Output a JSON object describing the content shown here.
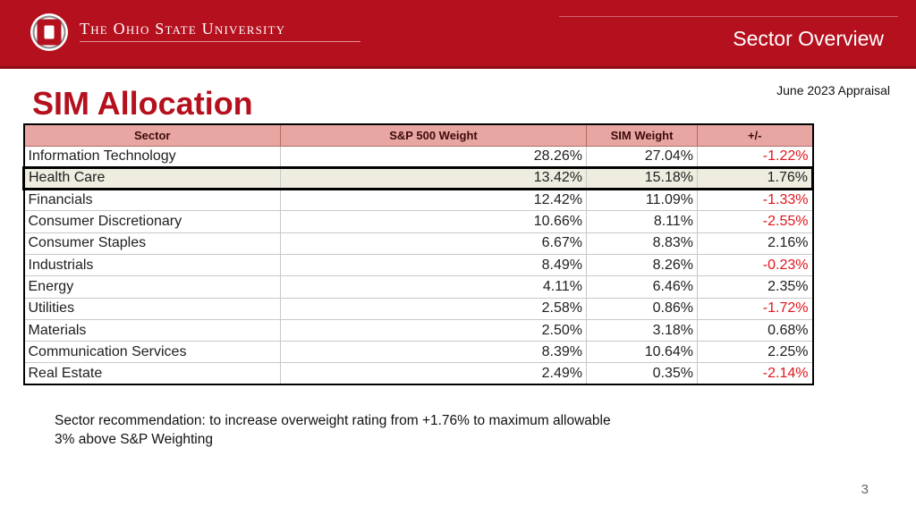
{
  "header": {
    "university_name": "The Ohio State University",
    "section_title": "Sector Overview",
    "logo_icon": "ohio-state-block-o-logo",
    "brand_color": "#b5101e"
  },
  "page": {
    "title": "SIM Allocation",
    "appraisal_date": "June 2023 Appraisal",
    "page_number": "3"
  },
  "table": {
    "columns": [
      "Sector",
      "S&P 500 Weight",
      "SIM Weight",
      "+/-"
    ],
    "header_color": "#e8a6a2",
    "negative_color": "#e0161d",
    "rows": [
      {
        "sector": "Information Technology",
        "sp500_weight": "28.26%",
        "sim_weight": "27.04%",
        "diff": "-1.22%"
      },
      {
        "sector": "Health Care",
        "sp500_weight": "13.42%",
        "sim_weight": "15.18%",
        "diff": "1.76%"
      },
      {
        "sector": "Financials",
        "sp500_weight": "12.42%",
        "sim_weight": "11.09%",
        "diff": "-1.33%"
      },
      {
        "sector": "Consumer Discretionary",
        "sp500_weight": "10.66%",
        "sim_weight": "8.11%",
        "diff": "-2.55%"
      },
      {
        "sector": "Consumer Staples",
        "sp500_weight": "6.67%",
        "sim_weight": "8.83%",
        "diff": "2.16%"
      },
      {
        "sector": "Industrials",
        "sp500_weight": "8.49%",
        "sim_weight": "8.26%",
        "diff": "-0.23%"
      },
      {
        "sector": "Energy",
        "sp500_weight": "4.11%",
        "sim_weight": "6.46%",
        "diff": "2.35%"
      },
      {
        "sector": "Utilities",
        "sp500_weight": "2.58%",
        "sim_weight": "0.86%",
        "diff": "-1.72%"
      },
      {
        "sector": "Materials",
        "sp500_weight": "2.50%",
        "sim_weight": "3.18%",
        "diff": "0.68%"
      },
      {
        "sector": "Communication Services",
        "sp500_weight": "8.39%",
        "sim_weight": "10.64%",
        "diff": "2.25%"
      },
      {
        "sector": "Real Estate",
        "sp500_weight": "2.49%",
        "sim_weight": "0.35%",
        "diff": "-2.14%"
      }
    ]
  },
  "recommendation": "Sector recommendation: to increase overweight rating from +1.76% to maximum allowable 3% above S&P Weighting"
}
